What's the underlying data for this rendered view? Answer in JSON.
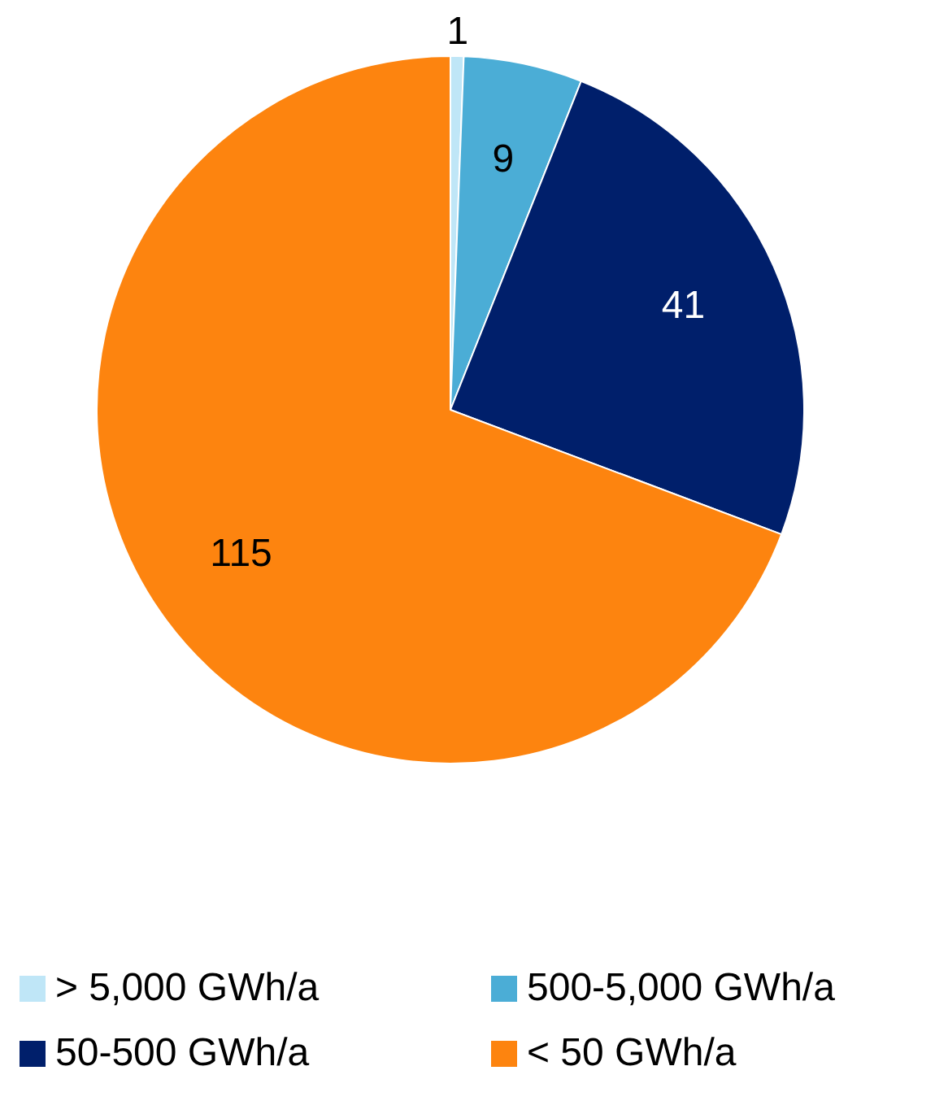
{
  "chart_data": {
    "type": "pie",
    "categories": [
      "> 5,000 GWh/a",
      "500-5,000 GWh/a",
      "50-500 GWh/a",
      "< 50 GWh/a"
    ],
    "values": [
      1,
      9,
      41,
      115
    ],
    "colors": [
      "#bfe6f7",
      "#4badd6",
      "#001f6b",
      "#fd840f"
    ],
    "data_labels": true,
    "legend": "bottom"
  }
}
